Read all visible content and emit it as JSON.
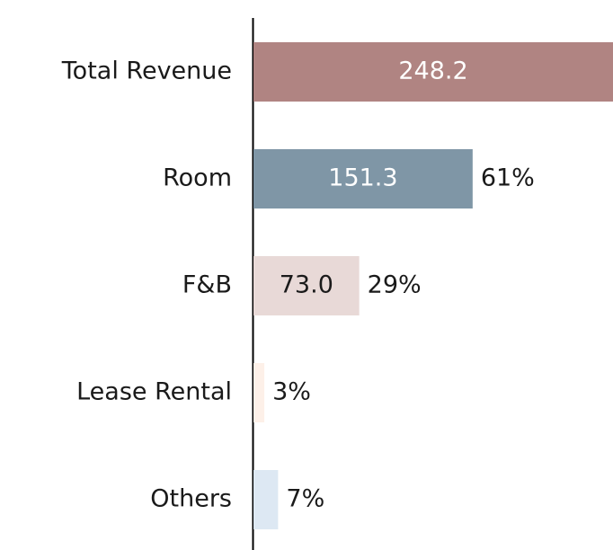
{
  "chart_data": {
    "type": "hbar",
    "categories": [
      "Total Revenue",
      "Room",
      "F&B",
      "Lease Rental",
      "Others"
    ],
    "values": [
      248.2,
      151.3,
      73.0,
      7.5,
      17
    ],
    "value_labels": [
      "248.2",
      "151.3",
      "73.0",
      null,
      null
    ],
    "share_labels": [
      null,
      "61%",
      "29%",
      "3%",
      "7%"
    ],
    "colors": [
      "#b08482",
      "#7f96a6",
      "#e8d9d7",
      "#fdf0e8",
      "#dde8f3"
    ],
    "xlim": [
      0,
      248.2
    ]
  }
}
